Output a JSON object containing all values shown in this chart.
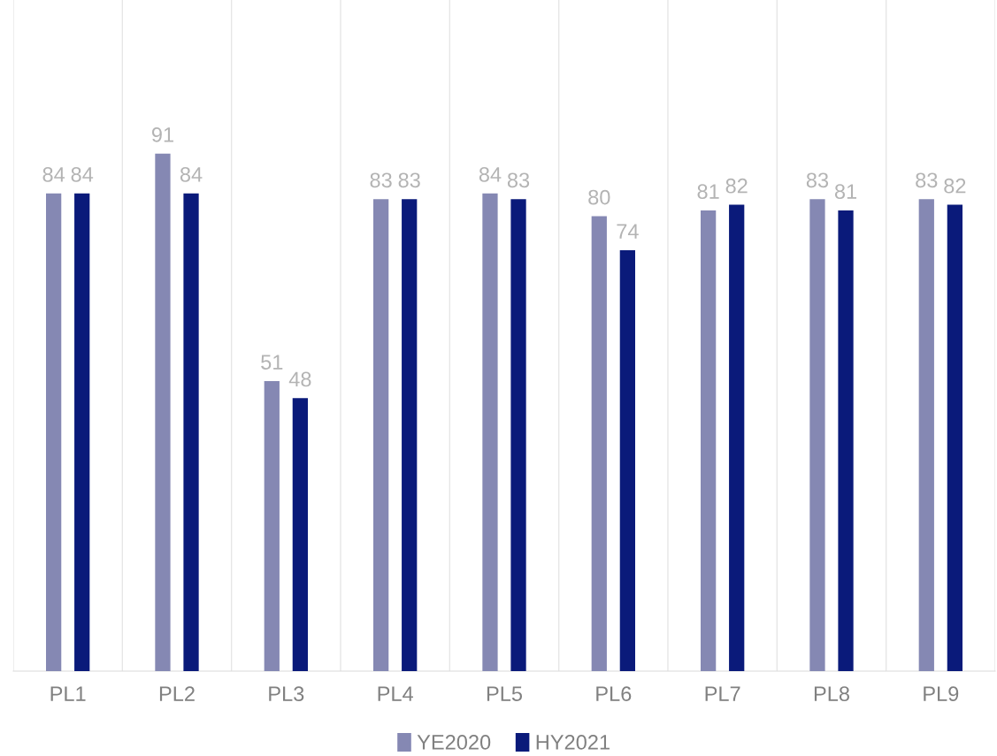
{
  "chart_data": {
    "type": "bar",
    "categories": [
      "PL1",
      "PL2",
      "PL3",
      "PL4",
      "PL5",
      "PL6",
      "PL7",
      "PL8",
      "PL9"
    ],
    "series": [
      {
        "name": "YE2020",
        "color": "#8588b3",
        "values": [
          84,
          91,
          51,
          83,
          84,
          80,
          81,
          83,
          83
        ]
      },
      {
        "name": "HY2021",
        "color": "#0a1a7a",
        "values": [
          84,
          84,
          48,
          83,
          83,
          74,
          82,
          81,
          82
        ]
      }
    ],
    "ylim": [
      0,
      118
    ],
    "data_labels": true,
    "grid": "x",
    "legend": "bottom",
    "tick_labels": "x"
  }
}
